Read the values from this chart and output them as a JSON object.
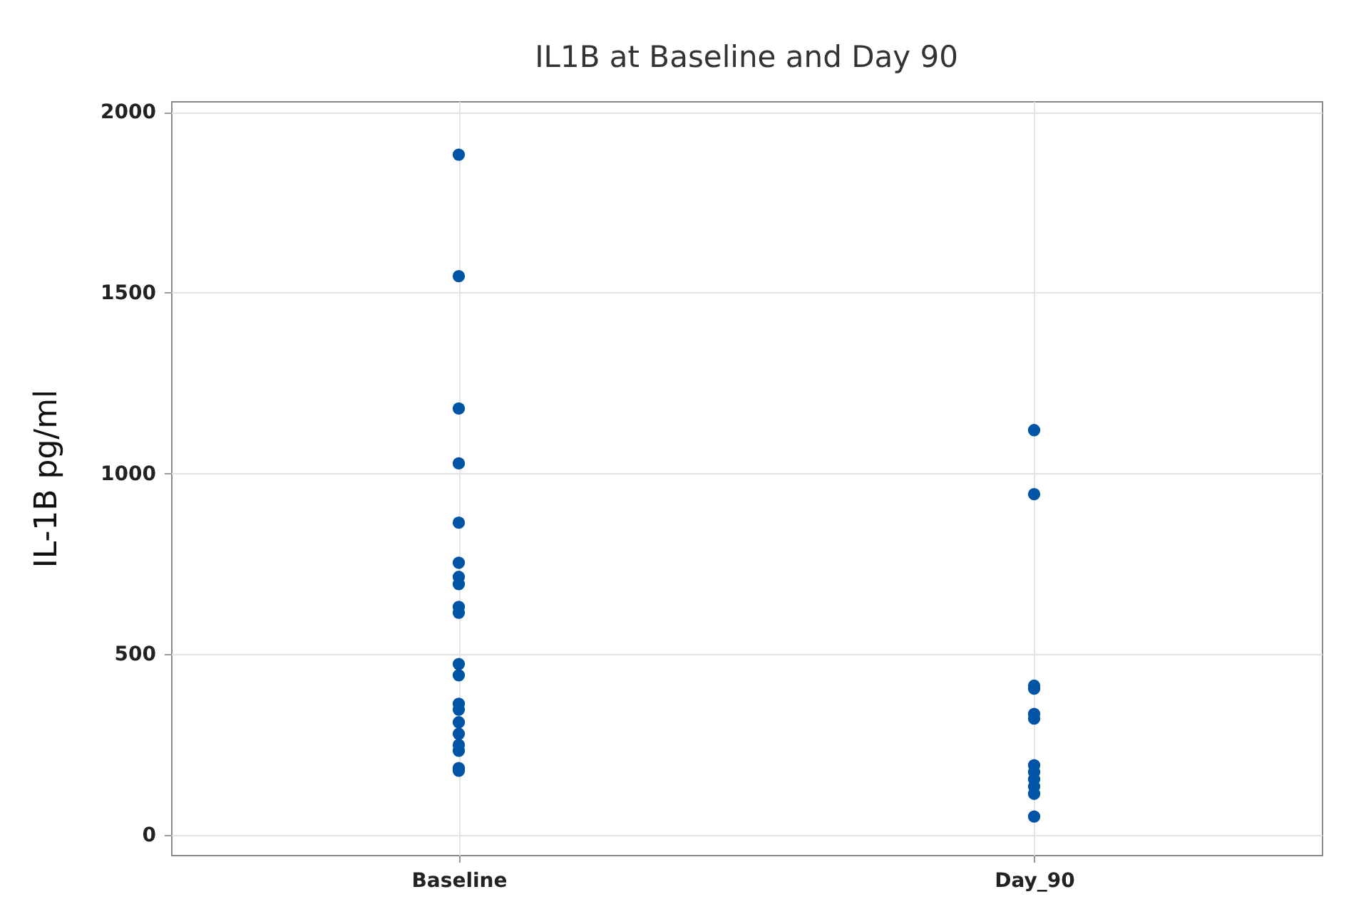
{
  "chart_data": {
    "type": "scatter",
    "title": "IL1B at Baseline and Day 90",
    "ylabel": "IL-1B pg/ml",
    "categories": [
      "Baseline",
      "Day_90"
    ],
    "series": [
      {
        "color": "#0054a6",
        "x": [
          "Baseline",
          "Baseline",
          "Baseline",
          "Baseline",
          "Baseline",
          "Baseline",
          "Baseline",
          "Baseline",
          "Baseline",
          "Baseline",
          "Baseline",
          "Baseline",
          "Baseline",
          "Baseline",
          "Baseline",
          "Baseline",
          "Baseline",
          "Baseline",
          "Baseline",
          "Baseline",
          "Day_90",
          "Day_90",
          "Day_90",
          "Day_90",
          "Day_90",
          "Day_90",
          "Day_90",
          "Day_90",
          "Day_90",
          "Day_90",
          "Day_90",
          "Day_90"
        ],
        "values": [
          1882,
          1546,
          1180,
          1028,
          864,
          753,
          714,
          694,
          631,
          615,
          473,
          442,
          363,
          347,
          312,
          280,
          249,
          233,
          185,
          178,
          1120,
          943,
          413,
          405,
          335,
          322,
          193,
          174,
          154,
          134,
          114,
          51
        ]
      }
    ],
    "ylim": [
      -55,
      2030
    ],
    "yticks": [
      0,
      500,
      1000,
      1500,
      2000
    ],
    "grid": true,
    "marker": "circle"
  }
}
